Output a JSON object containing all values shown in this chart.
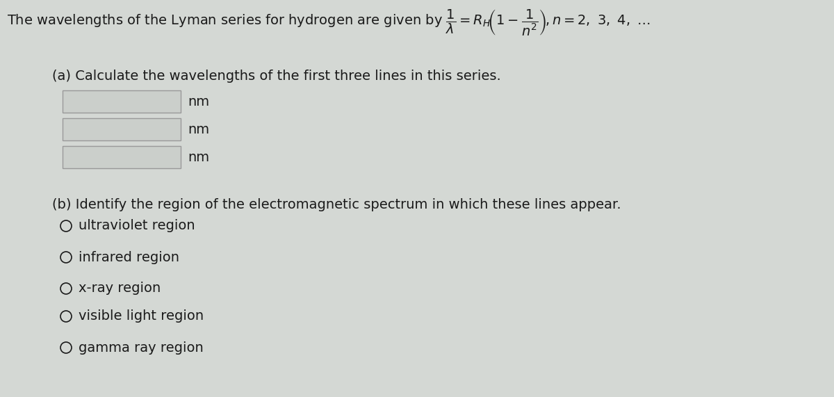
{
  "bg_color": "#d4d8d4",
  "text_color": "#1a1a1a",
  "part_a_label": "(a) Calculate the wavelengths of the first three lines in this series.",
  "nm_label": "nm",
  "part_b_label": "(b) Identify the region of the electromagnetic spectrum in which these lines appear.",
  "options": [
    "ultraviolet region",
    "infrared region",
    "x-ray region",
    "visible light region",
    "gamma ray region"
  ],
  "input_box_color": "#cbcfcb",
  "input_box_edge": "#999999",
  "font_size_title": 14,
  "font_size_body": 14,
  "font_size_option": 14
}
